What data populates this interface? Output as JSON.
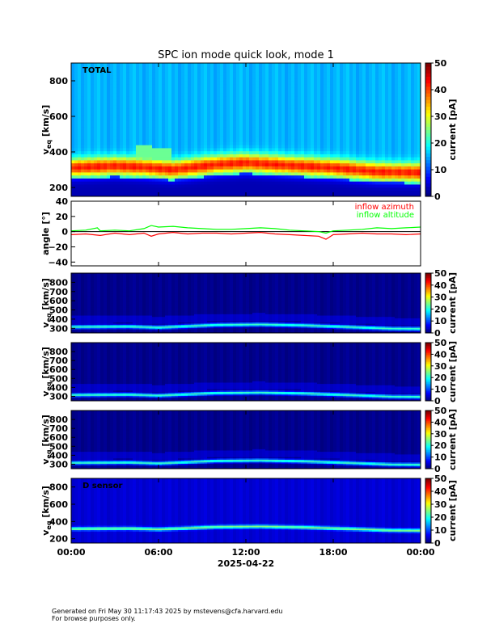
{
  "title": "SPC ion mode quick look, mode 1",
  "date_label": "2025-04-22",
  "footer": {
    "line1": "Generated on Fri May 30 11:17:43 2025 by mstevens@cfa.harvard.edu",
    "line2": "For browse purposes only."
  },
  "colorbar_label": "current [pA]",
  "chart_data": [
    {
      "type": "heatmap",
      "panel": "total",
      "corner_label": "TOTAL",
      "ylabel": "v_eq [km/s]",
      "ylim": [
        150,
        900
      ],
      "yticks": [
        200,
        400,
        600,
        800
      ],
      "xlim": [
        0,
        24
      ],
      "xticks": [
        "00:00",
        "06:00",
        "12:00",
        "18:00",
        "00:00"
      ],
      "colorbar": {
        "label": "current [pA]",
        "range": [
          0,
          50
        ],
        "ticks": [
          0,
          10,
          20,
          30,
          40,
          50
        ]
      },
      "background_level": 0.28,
      "core_speed_kms": [
        [
          0,
          312
        ],
        [
          3,
          322
        ],
        [
          5,
          315
        ],
        [
          7,
          302
        ],
        [
          10,
          330
        ],
        [
          12,
          340
        ],
        [
          15,
          325
        ],
        [
          18,
          312
        ],
        [
          21,
          290
        ],
        [
          24,
          285
        ]
      ]
    },
    {
      "type": "line",
      "panel": "angles",
      "ylabel": "angle [°]",
      "ylim": [
        -45,
        40
      ],
      "yticks": [
        -40,
        -20,
        0,
        20,
        40
      ],
      "xlim": [
        0,
        24
      ],
      "series": [
        {
          "name": "inflow azimuth",
          "color": "#ff0000",
          "points": [
            [
              0,
              -4
            ],
            [
              1,
              -3
            ],
            [
              2,
              -5
            ],
            [
              3,
              -2
            ],
            [
              4,
              -4
            ],
            [
              5,
              -2
            ],
            [
              5.5,
              -6
            ],
            [
              6,
              -3
            ],
            [
              7,
              -1
            ],
            [
              8,
              -3
            ],
            [
              9,
              -2
            ],
            [
              10,
              -2
            ],
            [
              11,
              -3
            ],
            [
              12,
              -2
            ],
            [
              13,
              -1
            ],
            [
              14,
              -3
            ],
            [
              15,
              -4
            ],
            [
              16,
              -5
            ],
            [
              17,
              -6
            ],
            [
              17.5,
              -10
            ],
            [
              18,
              -4
            ],
            [
              19,
              -3
            ],
            [
              20,
              -2
            ],
            [
              21,
              -3
            ],
            [
              22,
              -3
            ],
            [
              23,
              -4
            ],
            [
              24,
              -3
            ]
          ]
        },
        {
          "name": "inflow altitude",
          "color": "#00ff00",
          "points": [
            [
              0,
              1
            ],
            [
              1,
              2
            ],
            [
              1.8,
              5
            ],
            [
              2,
              1
            ],
            [
              3,
              2
            ],
            [
              4,
              1
            ],
            [
              5,
              4
            ],
            [
              5.5,
              8
            ],
            [
              6,
              6
            ],
            [
              7,
              7
            ],
            [
              8,
              5
            ],
            [
              9,
              4
            ],
            [
              10,
              3
            ],
            [
              11,
              3
            ],
            [
              12,
              4
            ],
            [
              13,
              5
            ],
            [
              14,
              4
            ],
            [
              15,
              2
            ],
            [
              16,
              1
            ],
            [
              17,
              0
            ],
            [
              17.5,
              -2
            ],
            [
              18,
              1
            ],
            [
              19,
              2
            ],
            [
              20,
              3
            ],
            [
              21,
              5
            ],
            [
              22,
              4
            ],
            [
              23,
              5
            ],
            [
              24,
              6
            ]
          ]
        }
      ],
      "zero_line": true
    },
    {
      "type": "heatmap",
      "panel": "sensor-A",
      "ylabel": "v_eq [km/s]",
      "ylim": [
        250,
        900
      ],
      "yticks": [
        300,
        400,
        500,
        600,
        700,
        800
      ],
      "colorbar": {
        "label": "current [pA]",
        "range": [
          0,
          50
        ],
        "ticks": [
          0,
          10,
          20,
          30,
          40,
          50
        ]
      },
      "background_level": 0.0,
      "core_speed_kms": [
        [
          0,
          318
        ],
        [
          4,
          322
        ],
        [
          6,
          312
        ],
        [
          10,
          340
        ],
        [
          13,
          345
        ],
        [
          16,
          335
        ],
        [
          19,
          318
        ],
        [
          22,
          300
        ],
        [
          24,
          298
        ]
      ]
    },
    {
      "type": "heatmap",
      "panel": "sensor-B",
      "ylabel": "v_eq [km/s]",
      "ylim": [
        250,
        900
      ],
      "yticks": [
        300,
        400,
        500,
        600,
        700,
        800
      ],
      "colorbar": {
        "label": "current [pA]",
        "range": [
          0,
          50
        ],
        "ticks": [
          0,
          10,
          20,
          30,
          40,
          50
        ]
      },
      "background_level": 0.0,
      "core_speed_kms": [
        [
          0,
          318
        ],
        [
          4,
          322
        ],
        [
          6,
          312
        ],
        [
          10,
          340
        ],
        [
          13,
          345
        ],
        [
          16,
          335
        ],
        [
          19,
          318
        ],
        [
          22,
          300
        ],
        [
          24,
          298
        ]
      ]
    },
    {
      "type": "heatmap",
      "panel": "sensor-C",
      "ylabel": "v_eq [km/s]",
      "ylim": [
        250,
        900
      ],
      "yticks": [
        300,
        400,
        500,
        600,
        700,
        800
      ],
      "colorbar": {
        "label": "current [pA]",
        "range": [
          0,
          50
        ],
        "ticks": [
          0,
          10,
          20,
          30,
          40,
          50
        ]
      },
      "background_level": 0.0,
      "core_speed_kms": [
        [
          0,
          318
        ],
        [
          4,
          322
        ],
        [
          6,
          312
        ],
        [
          10,
          340
        ],
        [
          13,
          345
        ],
        [
          16,
          335
        ],
        [
          19,
          318
        ],
        [
          22,
          300
        ],
        [
          24,
          298
        ]
      ]
    },
    {
      "type": "heatmap",
      "panel": "sensor-D",
      "corner_label": "D sensor",
      "ylabel": "v_eq [km/s]",
      "ylim": [
        150,
        900
      ],
      "yticks": [
        200,
        400,
        600,
        800
      ],
      "colorbar": {
        "label": "current [pA]",
        "range": [
          0,
          50
        ],
        "ticks": [
          0,
          10,
          20,
          30,
          40,
          50
        ]
      },
      "background_level": 0.07,
      "core_speed_kms": [
        [
          0,
          318
        ],
        [
          4,
          322
        ],
        [
          6,
          312
        ],
        [
          10,
          340
        ],
        [
          13,
          345
        ],
        [
          16,
          335
        ],
        [
          19,
          318
        ],
        [
          22,
          300
        ],
        [
          24,
          298
        ]
      ]
    }
  ]
}
